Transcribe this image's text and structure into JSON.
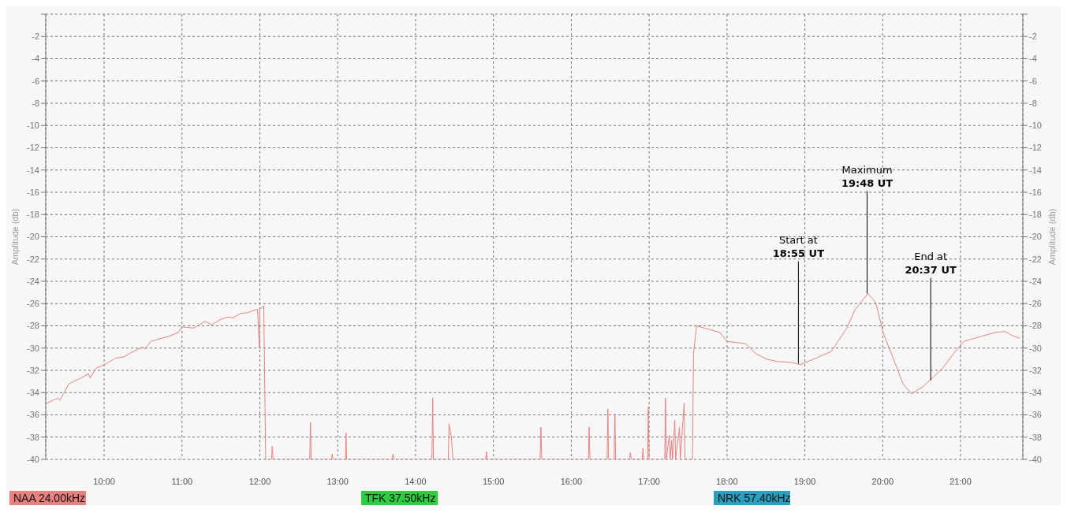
{
  "chart_data": {
    "type": "line",
    "xlabel": null,
    "ylabel": "Amplitude (db)",
    "y2label": "Amplitude (db)",
    "xlim": [
      9.25,
      21.8
    ],
    "ylim": [
      -40,
      0
    ],
    "y2lim": [
      -40,
      0
    ],
    "xticks": [
      {
        "value": 10,
        "label": "10:00"
      },
      {
        "value": 11,
        "label": "11:00"
      },
      {
        "value": 12,
        "label": "12:00"
      },
      {
        "value": 13,
        "label": "13:00"
      },
      {
        "value": 14,
        "label": "14:00"
      },
      {
        "value": 15,
        "label": "15:00"
      },
      {
        "value": 16,
        "label": "16:00"
      },
      {
        "value": 17,
        "label": "17:00"
      },
      {
        "value": 18,
        "label": "18:00"
      },
      {
        "value": 19,
        "label": "19:00"
      },
      {
        "value": 20,
        "label": "20:00"
      },
      {
        "value": 21,
        "label": "21:00"
      }
    ],
    "yticks": [
      -40,
      -38,
      -36,
      -34,
      -32,
      -30,
      -28,
      -26,
      -24,
      -22,
      -20,
      -18,
      -16,
      -14,
      -12,
      -10,
      -8,
      -6,
      -4,
      -2,
      {
        "value": 0,
        "label": null
      }
    ],
    "y2ticks": [
      -40,
      -38,
      -36,
      -34,
      -32,
      -30,
      -28,
      -26,
      -24,
      -22,
      -20,
      -18,
      -16,
      -14,
      -12,
      -10,
      -8,
      -6,
      -4,
      -2,
      {
        "value": 0,
        "label": null
      }
    ],
    "grid": true,
    "legend": "bottom",
    "marker": "none",
    "line_style": "solid",
    "series": [
      {
        "name": "NAA 24.00kHz",
        "color": "#e88080",
        "x": [
          9.25,
          9.4,
          9.43,
          9.55,
          9.7,
          9.8,
          9.82,
          9.9,
          10.0,
          10.15,
          10.25,
          10.4,
          10.5,
          10.52,
          10.6,
          10.75,
          10.85,
          10.95,
          11.0,
          11.15,
          11.3,
          11.38,
          11.5,
          11.6,
          11.65,
          11.75,
          11.85,
          11.97,
          11.995,
          12.0,
          12.05,
          12.06,
          12.075,
          12.15,
          12.16,
          12.17,
          12.64,
          12.65,
          12.66,
          12.92,
          12.93,
          12.94,
          13.1,
          13.107,
          13.115,
          13.7,
          13.71,
          13.72,
          14.21,
          14.22,
          14.23,
          14.42,
          14.43,
          14.46,
          14.48,
          14.9,
          14.91,
          14.92,
          15.6,
          15.61,
          15.62,
          16.22,
          16.23,
          16.24,
          16.46,
          16.47,
          16.48,
          16.55,
          16.56,
          16.57,
          16.75,
          16.76,
          16.77,
          16.91,
          16.92,
          16.93,
          16.98,
          16.99,
          17.0,
          17.2,
          17.21,
          17.22,
          17.26,
          17.27,
          17.29,
          17.3,
          17.33,
          17.34,
          17.39,
          17.4,
          17.45,
          17.46,
          17.557,
          17.57,
          17.61,
          17.91,
          18.0,
          18.24,
          18.37,
          18.51,
          18.64,
          18.84,
          18.94,
          19.11,
          19.34,
          19.54,
          19.64,
          19.81,
          19.91,
          20.01,
          20.14,
          20.26,
          20.37,
          20.51,
          20.62,
          20.77,
          20.91,
          21.04,
          21.24,
          21.44,
          21.57,
          21.67,
          21.76
        ],
        "values": [
          -35,
          -34.5,
          -34.7,
          -33.2,
          -32.7,
          -32.3,
          -32.7,
          -31.8,
          -31.5,
          -30.9,
          -30.8,
          -30.2,
          -29.9,
          -30.1,
          -29.4,
          -29.1,
          -28.9,
          -28.6,
          -28.1,
          -28.2,
          -27.6,
          -27.9,
          -27.4,
          -27.2,
          -27.3,
          -26.9,
          -26.8,
          -26.5,
          -30,
          -26.5,
          -26.2,
          -31.5,
          -40,
          -40,
          -38.8,
          -40,
          -40,
          -36.7,
          -40,
          -40,
          -39.5,
          -40,
          -40,
          -37.6,
          -40,
          -40,
          -39.5,
          -40,
          -40,
          -34.5,
          -40,
          -40,
          -36.8,
          -38,
          -40,
          -40,
          -39.3,
          -40,
          -40,
          -37.1,
          -40,
          -40,
          -37.1,
          -40,
          -40,
          -35.5,
          -40,
          -40,
          -35.9,
          -40,
          -40,
          -39.4,
          -40,
          -40,
          -39,
          -40,
          -40,
          -35.3,
          -40,
          -40,
          -34.5,
          -40,
          -37.8,
          -40,
          -38.3,
          -40,
          -36.5,
          -40,
          -37.1,
          -40,
          -34.9,
          -40,
          -40,
          -30.5,
          -28,
          -28.6,
          -29.4,
          -29.6,
          -30.5,
          -31,
          -31.2,
          -31.3,
          -31.5,
          -31,
          -30.3,
          -28.2,
          -26.6,
          -25.1,
          -25.9,
          -28.7,
          -31,
          -33.2,
          -34.1,
          -33.5,
          -32.8,
          -31.8,
          -30.5,
          -29.4,
          -29,
          -28.6,
          -28.5,
          -28.9,
          -29.1
        ]
      },
      {
        "name": "TFK 37.50kHz",
        "color": "#2ecc40"
      },
      {
        "name": "NRK 57.40kHz",
        "color": "#2a9fbf"
      }
    ],
    "annotations": [
      {
        "text": "Start at\n18:55 UT",
        "x": 18.917,
        "y": -31.4
      },
      {
        "text": "Maximum\n19:48 UT",
        "x": 19.8,
        "y": -25.1
      },
      {
        "text": "End at\n20:37 UT",
        "x": 20.617,
        "y": -32.9
      }
    ]
  }
}
